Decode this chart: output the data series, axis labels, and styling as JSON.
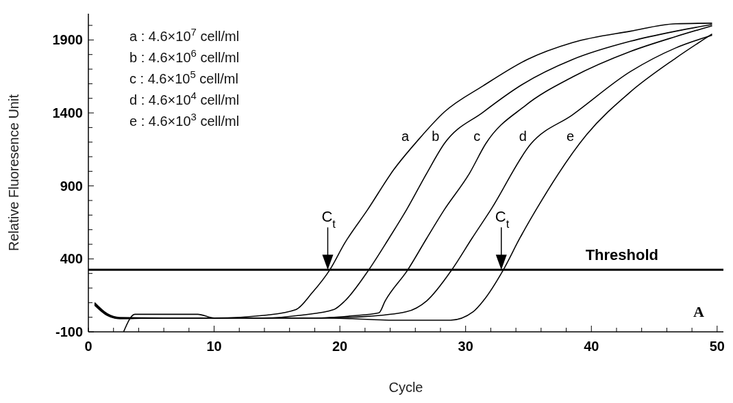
{
  "chart_data": {
    "type": "line",
    "xlabel": "Cycle",
    "ylabel": "Relative Fluoresence Unit",
    "xlim": [
      0,
      50.5
    ],
    "ylim": [
      -100,
      2080
    ],
    "xticks": [
      0,
      {
        "value": 2,
        "label": null
      },
      {
        "value": 4,
        "label": null
      },
      {
        "value": 6,
        "label": null
      },
      {
        "value": 8,
        "label": null
      },
      10,
      {
        "value": 12,
        "label": null
      },
      {
        "value": 14,
        "label": null
      },
      {
        "value": 16,
        "label": null
      },
      {
        "value": 18,
        "label": null
      },
      20,
      {
        "value": 22,
        "label": null
      },
      {
        "value": 24,
        "label": null
      },
      {
        "value": 26,
        "label": null
      },
      {
        "value": 28,
        "label": null
      },
      30,
      {
        "value": 32,
        "label": null
      },
      {
        "value": 34,
        "label": null
      },
      {
        "value": 36,
        "label": null
      },
      {
        "value": 38,
        "label": null
      },
      40,
      {
        "value": 42,
        "label": null
      },
      {
        "value": 44,
        "label": null
      },
      {
        "value": 46,
        "label": null
      },
      {
        "value": 48,
        "label": null
      },
      50
    ],
    "yticks": [
      -100,
      {
        "value": 0,
        "label": null
      },
      {
        "value": 100,
        "label": null
      },
      {
        "value": 200,
        "label": null
      },
      {
        "value": 300,
        "label": null
      },
      400,
      {
        "value": 500,
        "label": null
      },
      {
        "value": 600,
        "label": null
      },
      {
        "value": 700,
        "label": null
      },
      {
        "value": 800,
        "label": null
      },
      900,
      {
        "value": 1000,
        "label": null
      },
      {
        "value": 1100,
        "label": null
      },
      {
        "value": 1200,
        "label": null
      },
      {
        "value": 1300,
        "label": null
      },
      1400,
      {
        "value": 1500,
        "label": null
      },
      {
        "value": 1600,
        "label": null
      },
      {
        "value": 1700,
        "label": null
      },
      {
        "value": 1800,
        "label": null
      },
      1900,
      {
        "value": 2000,
        "label": null
      }
    ],
    "marker": "none",
    "line_style": "solid",
    "series": [
      {
        "name": "a",
        "color": "#000000",
        "x": [
          0.5,
          1.5,
          2.5,
          6,
          10,
          14.2,
          16.5,
          17.8,
          19.2,
          20.4,
          22.2,
          24.3,
          26.2,
          28.3,
          31.4,
          34.9,
          38.5,
          43.1,
          46.7,
          49.6
        ],
        "values": [
          94,
          20,
          -5,
          -5,
          -5,
          15,
          52,
          168,
          325,
          510,
          736,
          1013,
          1212,
          1406,
          1586,
          1766,
          1882,
          1960,
          2011,
          2015
        ]
      },
      {
        "name": "b",
        "color": "#000000",
        "x": [
          0.5,
          1.5,
          2.5,
          6,
          10,
          14,
          17,
          19.5,
          20.4,
          22.3,
          23.9,
          25.3,
          26.9,
          28.3,
          31.4,
          34.5,
          38.5,
          43.1,
          46.7,
          49.6
        ],
        "values": [
          88,
          16,
          -8,
          -5,
          -5,
          -5,
          15,
          52,
          112,
          325,
          540,
          736,
          985,
          1189,
          1406,
          1595,
          1766,
          1891,
          1960,
          2006
        ]
      },
      {
        "name": "c",
        "color": "#000000",
        "x": [
          0.5,
          1.5,
          2.5,
          6,
          10,
          14,
          18,
          21,
          23.1,
          23.6,
          25.4,
          26.9,
          28.3,
          30.3,
          31.6,
          34.7,
          38.5,
          43.1,
          46.7,
          49.6
        ],
        "values": [
          100,
          24,
          -2,
          -5,
          -5,
          -5,
          -5,
          10,
          30,
          112,
          325,
          540,
          736,
          985,
          1189,
          1447,
          1646,
          1821,
          1923,
          1997
        ]
      },
      {
        "name": "d",
        "color": "#000000",
        "x": [
          0.5,
          1.5,
          2.5,
          6,
          10,
          14,
          18,
          22,
          25.3,
          26.9,
          28.9,
          30.5,
          32.0,
          35.2,
          38.5,
          43.1,
          46.7,
          49.6
        ],
        "values": [
          82,
          12,
          -10,
          -5,
          -5,
          -5,
          -5,
          5,
          38,
          112,
          325,
          540,
          736,
          1189,
          1387,
          1683,
          1845,
          1932
        ]
      },
      {
        "name": "e",
        "color": "#000000",
        "x": [
          2.8,
          3.7,
          6,
          8.7,
          10,
          14,
          18,
          21,
          23.9,
          26,
          28.8,
          30.6,
          31.4,
          33.0,
          34.3,
          35.6,
          39.6,
          43.1,
          46.7,
          49.6
        ],
        "values": [
          -100,
          20,
          20,
          20,
          -5,
          -5,
          -5,
          -10,
          -20,
          -20,
          -20,
          38,
          112,
          325,
          540,
          736,
          1249,
          1544,
          1775,
          1941
        ]
      }
    ],
    "ref_lines": [
      {
        "axis": "y",
        "value": 325,
        "label": "Threshold",
        "color": "#000000"
      }
    ],
    "annotations": [
      "a : 4.6×10$^{7}$ cell/ml",
      "b :  4.6×10$^{6}$ cell/ml",
      "c :  4.6×10$^{5}$ cell/ml",
      "d :  4.6×10$^{4}$ cell/ml",
      "e :  4.6×10$^{3}$ cell/ml",
      {
        "text": "C$_{t}$",
        "x": 19.2,
        "y": 325
      },
      {
        "text": "C$_{t}$",
        "x": 33.0,
        "y": 325
      },
      "A"
    ]
  }
}
